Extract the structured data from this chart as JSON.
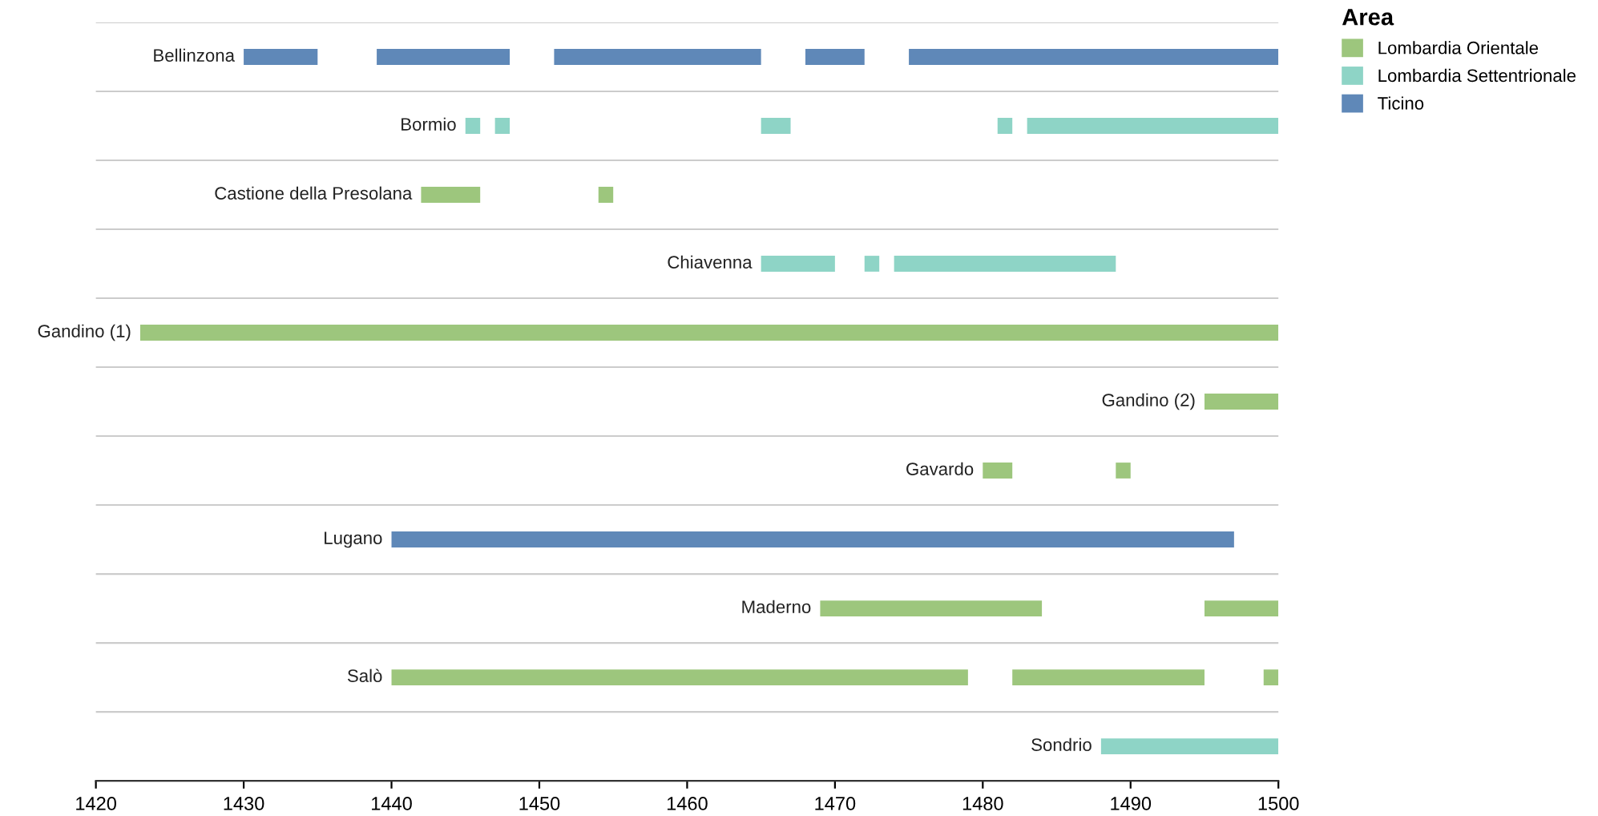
{
  "chart_data": {
    "type": "bar",
    "orientation": "horizontal",
    "legend_title": "Area",
    "legend": "top right",
    "grid": "y",
    "categories": [
      "Bellinzona",
      "Bormio",
      "Castione della Presolana",
      "Chiavenna",
      "Gandino (1)",
      "Gandino (2)",
      "Gavardo",
      "Lugano",
      "Maderno",
      "Salò",
      "Sondrio"
    ],
    "xlim": [
      1420,
      1500
    ],
    "xticks": [
      1420,
      1430,
      1440,
      1450,
      1460,
      1470,
      1480,
      1490,
      1500
    ],
    "series": [
      {
        "name": "Lombardia Orientale",
        "color": "#9dc67d",
        "base": [
          null,
          null,
          1442,
          null,
          1423,
          1495,
          1480,
          null,
          1469,
          1440,
          null
        ],
        "values": [
          null,
          null,
          4,
          null,
          77,
          5,
          2,
          null,
          15,
          39,
          null
        ]
      },
      {
        "color": "#9dc67d",
        "base": [
          null,
          null,
          1454,
          null,
          null,
          null,
          1489,
          null,
          1495,
          1482,
          null
        ],
        "values": [
          null,
          null,
          1,
          null,
          null,
          null,
          1,
          null,
          5,
          13,
          null
        ]
      },
      {
        "color": "#9dc67d",
        "base": [
          null,
          null,
          null,
          null,
          null,
          null,
          null,
          null,
          null,
          1499,
          null
        ],
        "values": [
          null,
          null,
          null,
          null,
          null,
          null,
          null,
          null,
          null,
          1,
          null
        ]
      },
      {
        "name": "Lombardia Settentrionale",
        "color": "#8ed4c6",
        "base": [
          null,
          1445,
          null,
          1465,
          null,
          null,
          null,
          null,
          null,
          null,
          1488
        ],
        "values": [
          null,
          1,
          null,
          5,
          null,
          null,
          null,
          null,
          null,
          null,
          12
        ]
      },
      {
        "color": "#8ed4c6",
        "base": [
          null,
          1447,
          null,
          1472,
          null,
          null,
          null,
          null,
          null,
          null,
          null
        ],
        "values": [
          null,
          1,
          null,
          1,
          null,
          null,
          null,
          null,
          null,
          null,
          null
        ]
      },
      {
        "color": "#8ed4c6",
        "base": [
          null,
          1465,
          null,
          1474,
          null,
          null,
          null,
          null,
          null,
          null,
          null
        ],
        "values": [
          null,
          2,
          null,
          15,
          null,
          null,
          null,
          null,
          null,
          null,
          null
        ]
      },
      {
        "color": "#8ed4c6",
        "base": [
          null,
          1481,
          null,
          null,
          null,
          null,
          null,
          null,
          null,
          null,
          null
        ],
        "values": [
          null,
          1,
          null,
          null,
          null,
          null,
          null,
          null,
          null,
          null,
          null
        ]
      },
      {
        "color": "#8ed4c6",
        "base": [
          null,
          1483,
          null,
          null,
          null,
          null,
          null,
          null,
          null,
          null,
          null
        ],
        "values": [
          null,
          17,
          null,
          null,
          null,
          null,
          null,
          null,
          null,
          null,
          null
        ]
      },
      {
        "name": "Ticino",
        "color": "#5f88b8",
        "base": [
          1430,
          null,
          null,
          null,
          null,
          null,
          null,
          1440,
          null,
          null,
          null
        ],
        "values": [
          5,
          null,
          null,
          null,
          null,
          null,
          null,
          57,
          null,
          null,
          null
        ]
      },
      {
        "color": "#5f88b8",
        "base": [
          1439,
          null,
          null,
          null,
          null,
          null,
          null,
          null,
          null,
          null,
          null
        ],
        "values": [
          9,
          null,
          null,
          null,
          null,
          null,
          null,
          null,
          null,
          null,
          null
        ]
      },
      {
        "color": "#5f88b8",
        "base": [
          1451,
          null,
          null,
          null,
          null,
          null,
          null,
          null,
          null,
          null,
          null
        ],
        "values": [
          14,
          null,
          null,
          null,
          null,
          null,
          null,
          null,
          null,
          null,
          null
        ]
      },
      {
        "color": "#5f88b8",
        "base": [
          1468,
          null,
          null,
          null,
          null,
          null,
          null,
          null,
          null,
          null,
          null
        ],
        "values": [
          4,
          null,
          null,
          null,
          null,
          null,
          null,
          null,
          null,
          null,
          null
        ]
      },
      {
        "color": "#5f88b8",
        "base": [
          1475,
          null,
          null,
          null,
          null,
          null,
          null,
          null,
          null,
          null,
          null
        ],
        "values": [
          25,
          null,
          null,
          null,
          null,
          null,
          null,
          null,
          null,
          null,
          null
        ]
      }
    ]
  }
}
